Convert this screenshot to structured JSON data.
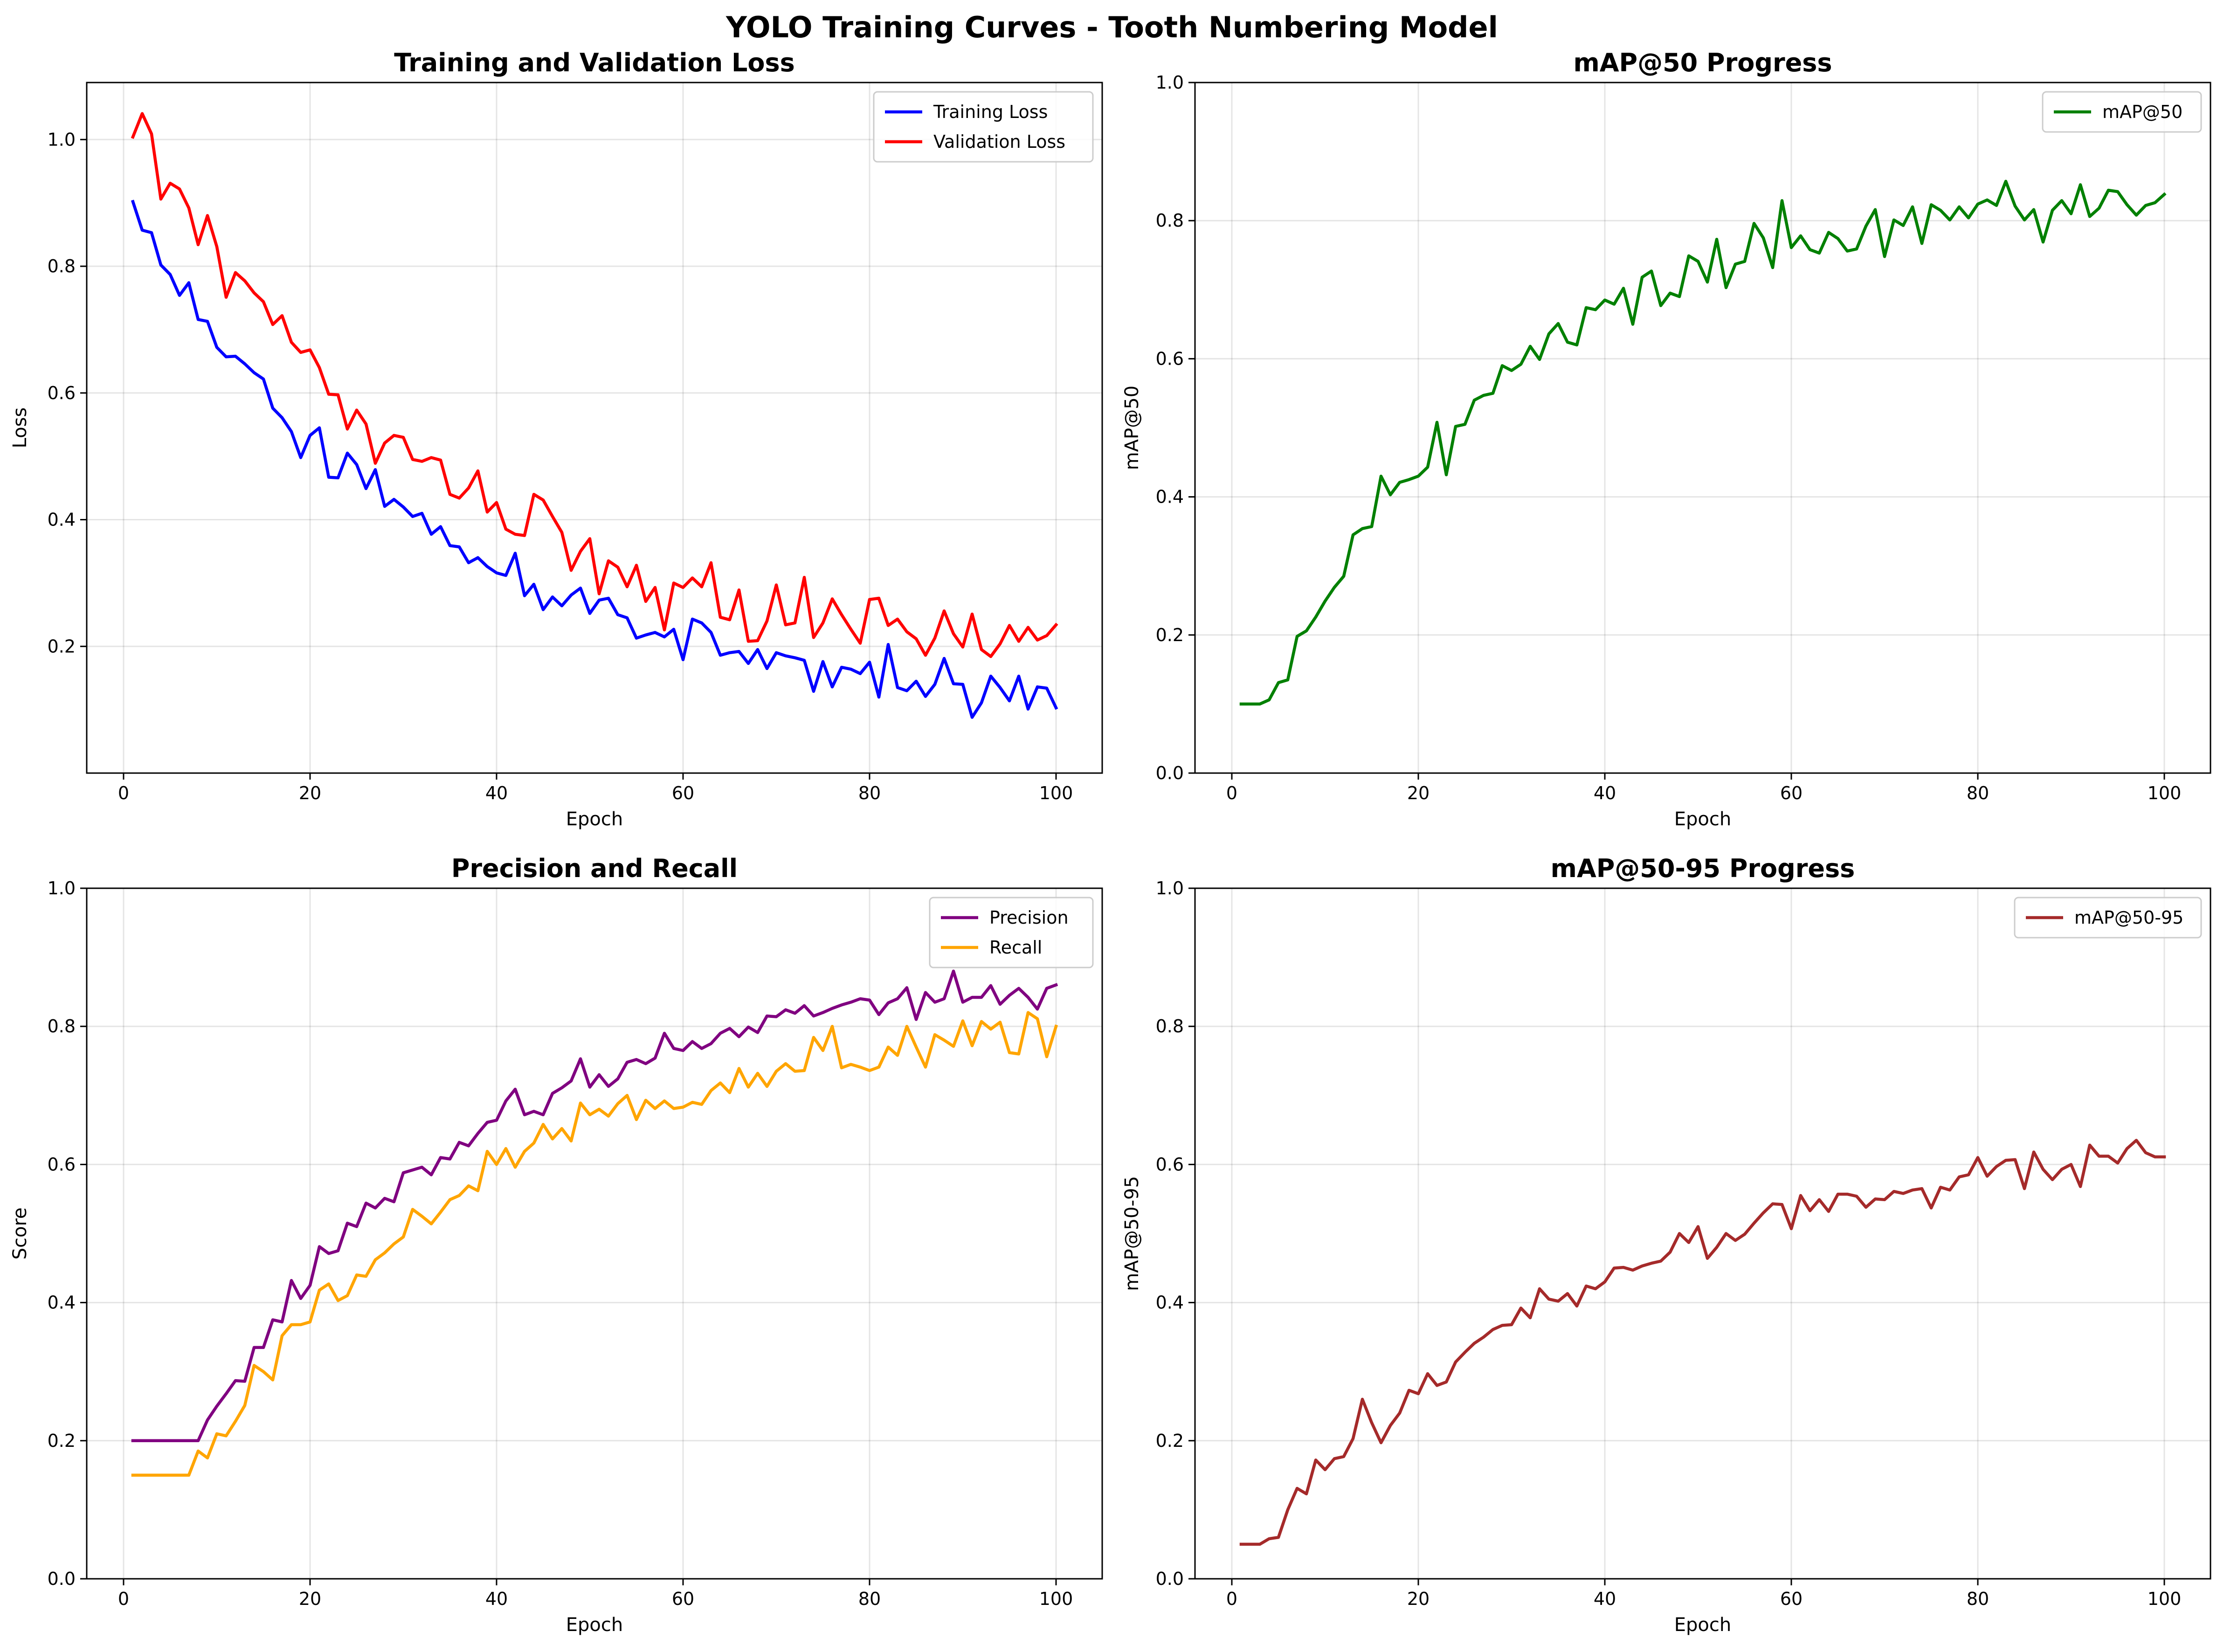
{
  "suptitle": "YOLO Training Curves - Tooth Numbering Model",
  "chart_data": [
    {
      "type": "line",
      "title": "Training and Validation Loss",
      "xlabel": "Epoch",
      "ylabel": "Loss",
      "xlim": [
        -3.95,
        104.95
      ],
      "ylim": [
        0.0,
        1.09
      ],
      "xticks": [
        0,
        20,
        40,
        60,
        80,
        100
      ],
      "yticks": [
        0.2,
        0.4,
        0.6,
        0.8,
        1.0
      ],
      "ytick_labels": [
        "0.2",
        "0.4",
        "0.6",
        "0.8",
        "1.0"
      ],
      "grid": true,
      "legend": "top-right",
      "x_start": 1,
      "series": [
        {
          "name": "Training Loss",
          "color": "#0000ff",
          "values": [
            0.902,
            0.857,
            0.853,
            0.802,
            0.787,
            0.754,
            0.774,
            0.716,
            0.713,
            0.672,
            0.657,
            0.658,
            0.646,
            0.632,
            0.622,
            0.576,
            0.561,
            0.539,
            0.498,
            0.533,
            0.545,
            0.467,
            0.466,
            0.505,
            0.487,
            0.449,
            0.479,
            0.421,
            0.432,
            0.42,
            0.405,
            0.41,
            0.377,
            0.389,
            0.359,
            0.357,
            0.332,
            0.34,
            0.326,
            0.316,
            0.312,
            0.347,
            0.28,
            0.298,
            0.258,
            0.278,
            0.264,
            0.281,
            0.292,
            0.252,
            0.273,
            0.276,
            0.25,
            0.245,
            0.213,
            0.218,
            0.222,
            0.215,
            0.227,
            0.179,
            0.243,
            0.237,
            0.222,
            0.186,
            0.19,
            0.192,
            0.173,
            0.195,
            0.165,
            0.19,
            0.185,
            0.182,
            0.178,
            0.129,
            0.176,
            0.136,
            0.167,
            0.164,
            0.157,
            0.175,
            0.12,
            0.203,
            0.135,
            0.13,
            0.145,
            0.121,
            0.14,
            0.181,
            0.141,
            0.14,
            0.088,
            0.111,
            0.153,
            0.135,
            0.114,
            0.153,
            0.101,
            0.136,
            0.134,
            0.103
          ]
        },
        {
          "name": "Validation Loss",
          "color": "#ff0000",
          "values": [
            1.004,
            1.041,
            1.009,
            0.906,
            0.931,
            0.922,
            0.892,
            0.834,
            0.88,
            0.831,
            0.751,
            0.79,
            0.777,
            0.758,
            0.744,
            0.708,
            0.722,
            0.68,
            0.664,
            0.668,
            0.64,
            0.598,
            0.597,
            0.543,
            0.573,
            0.551,
            0.489,
            0.521,
            0.533,
            0.53,
            0.495,
            0.492,
            0.498,
            0.494,
            0.44,
            0.434,
            0.45,
            0.477,
            0.412,
            0.427,
            0.385,
            0.377,
            0.375,
            0.44,
            0.431,
            0.405,
            0.38,
            0.32,
            0.35,
            0.37,
            0.283,
            0.335,
            0.325,
            0.294,
            0.328,
            0.271,
            0.293,
            0.226,
            0.3,
            0.293,
            0.308,
            0.294,
            0.332,
            0.246,
            0.242,
            0.289,
            0.208,
            0.209,
            0.24,
            0.297,
            0.234,
            0.237,
            0.309,
            0.214,
            0.237,
            0.275,
            0.25,
            0.227,
            0.205,
            0.274,
            0.276,
            0.233,
            0.243,
            0.223,
            0.212,
            0.186,
            0.213,
            0.256,
            0.22,
            0.199,
            0.251,
            0.195,
            0.184,
            0.204,
            0.233,
            0.208,
            0.23,
            0.21,
            0.217,
            0.234
          ]
        }
      ]
    },
    {
      "type": "line",
      "title": "mAP@50 Progress",
      "xlabel": "Epoch",
      "ylabel": "mAP@50",
      "xlim": [
        -3.95,
        104.95
      ],
      "ylim": [
        0.0,
        1.0
      ],
      "xticks": [
        0,
        20,
        40,
        60,
        80,
        100
      ],
      "yticks": [
        0.0,
        0.2,
        0.4,
        0.6,
        0.8,
        1.0
      ],
      "ytick_labels": [
        "0.0",
        "0.2",
        "0.4",
        "0.6",
        "0.8",
        "1.0"
      ],
      "grid": true,
      "legend": "top-right",
      "x_start": 1,
      "series": [
        {
          "name": "mAP@50",
          "color": "#008000",
          "values": [
            0.1,
            0.1,
            0.1,
            0.106,
            0.131,
            0.135,
            0.198,
            0.206,
            0.226,
            0.249,
            0.269,
            0.285,
            0.345,
            0.354,
            0.357,
            0.43,
            0.403,
            0.421,
            0.425,
            0.43,
            0.443,
            0.508,
            0.432,
            0.502,
            0.505,
            0.54,
            0.547,
            0.55,
            0.59,
            0.583,
            0.592,
            0.618,
            0.599,
            0.636,
            0.651,
            0.624,
            0.62,
            0.674,
            0.671,
            0.685,
            0.679,
            0.702,
            0.65,
            0.718,
            0.727,
            0.677,
            0.695,
            0.69,
            0.749,
            0.741,
            0.711,
            0.773,
            0.703,
            0.737,
            0.741,
            0.796,
            0.775,
            0.732,
            0.829,
            0.761,
            0.778,
            0.758,
            0.753,
            0.783,
            0.774,
            0.756,
            0.759,
            0.792,
            0.816,
            0.748,
            0.801,
            0.793,
            0.82,
            0.767,
            0.823,
            0.815,
            0.801,
            0.82,
            0.804,
            0.824,
            0.83,
            0.822,
            0.857,
            0.821,
            0.801,
            0.816,
            0.769,
            0.815,
            0.829,
            0.81,
            0.852,
            0.806,
            0.818,
            0.844,
            0.842,
            0.823,
            0.808,
            0.822,
            0.826,
            0.838
          ]
        }
      ]
    },
    {
      "type": "line",
      "title": "Precision and Recall",
      "xlabel": "Epoch",
      "ylabel": "Score",
      "xlim": [
        -3.95,
        104.95
      ],
      "ylim": [
        0.0,
        1.0
      ],
      "xticks": [
        0,
        20,
        40,
        60,
        80,
        100
      ],
      "yticks": [
        0.0,
        0.2,
        0.4,
        0.6,
        0.8,
        1.0
      ],
      "ytick_labels": [
        "0.0",
        "0.2",
        "0.4",
        "0.6",
        "0.8",
        "1.0"
      ],
      "grid": true,
      "legend": "top-right",
      "x_start": 1,
      "series": [
        {
          "name": "Precision",
          "color": "#800080",
          "values": [
            0.2,
            0.2,
            0.2,
            0.2,
            0.2,
            0.2,
            0.2,
            0.2,
            0.23,
            0.25,
            0.268,
            0.287,
            0.286,
            0.335,
            0.335,
            0.375,
            0.372,
            0.432,
            0.406,
            0.425,
            0.481,
            0.471,
            0.475,
            0.515,
            0.51,
            0.544,
            0.537,
            0.551,
            0.546,
            0.588,
            0.592,
            0.596,
            0.585,
            0.61,
            0.608,
            0.632,
            0.627,
            0.645,
            0.661,
            0.664,
            0.692,
            0.709,
            0.672,
            0.677,
            0.672,
            0.703,
            0.711,
            0.721,
            0.753,
            0.712,
            0.73,
            0.713,
            0.724,
            0.748,
            0.752,
            0.746,
            0.754,
            0.79,
            0.768,
            0.765,
            0.778,
            0.768,
            0.775,
            0.79,
            0.797,
            0.785,
            0.799,
            0.791,
            0.815,
            0.814,
            0.824,
            0.819,
            0.83,
            0.815,
            0.82,
            0.826,
            0.831,
            0.835,
            0.84,
            0.838,
            0.817,
            0.834,
            0.84,
            0.856,
            0.81,
            0.849,
            0.835,
            0.84,
            0.88,
            0.835,
            0.842,
            0.842,
            0.859,
            0.832,
            0.845,
            0.855,
            0.842,
            0.825,
            0.855,
            0.86
          ]
        },
        {
          "name": "Recall",
          "color": "#ffa500",
          "values": [
            0.15,
            0.15,
            0.15,
            0.15,
            0.15,
            0.15,
            0.15,
            0.185,
            0.175,
            0.21,
            0.207,
            0.228,
            0.251,
            0.309,
            0.3,
            0.288,
            0.352,
            0.368,
            0.368,
            0.372,
            0.418,
            0.427,
            0.403,
            0.41,
            0.44,
            0.438,
            0.462,
            0.472,
            0.485,
            0.495,
            0.535,
            0.525,
            0.514,
            0.531,
            0.549,
            0.555,
            0.569,
            0.562,
            0.619,
            0.6,
            0.623,
            0.596,
            0.619,
            0.631,
            0.658,
            0.637,
            0.652,
            0.634,
            0.689,
            0.672,
            0.68,
            0.67,
            0.688,
            0.7,
            0.665,
            0.693,
            0.681,
            0.692,
            0.681,
            0.683,
            0.69,
            0.687,
            0.707,
            0.718,
            0.704,
            0.739,
            0.712,
            0.732,
            0.713,
            0.735,
            0.746,
            0.735,
            0.736,
            0.784,
            0.765,
            0.8,
            0.74,
            0.745,
            0.741,
            0.736,
            0.741,
            0.77,
            0.758,
            0.8,
            0.77,
            0.741,
            0.788,
            0.78,
            0.771,
            0.808,
            0.772,
            0.807,
            0.796,
            0.806,
            0.762,
            0.76,
            0.82,
            0.811,
            0.756,
            0.8
          ]
        }
      ]
    },
    {
      "type": "line",
      "title": "mAP@50-95 Progress",
      "xlabel": "Epoch",
      "ylabel": "mAP@50-95",
      "xlim": [
        -3.95,
        104.95
      ],
      "ylim": [
        0.0,
        1.0
      ],
      "xticks": [
        0,
        20,
        40,
        60,
        80,
        100
      ],
      "yticks": [
        0.0,
        0.2,
        0.4,
        0.6,
        0.8,
        1.0
      ],
      "ytick_labels": [
        "0.0",
        "0.2",
        "0.4",
        "0.6",
        "0.8",
        "1.0"
      ],
      "grid": true,
      "legend": "top-right",
      "x_start": 1,
      "series": [
        {
          "name": "mAP@50-95",
          "color": "#a52a2a",
          "values": [
            0.05,
            0.05,
            0.05,
            0.058,
            0.06,
            0.1,
            0.131,
            0.123,
            0.172,
            0.158,
            0.174,
            0.177,
            0.203,
            0.26,
            0.226,
            0.197,
            0.222,
            0.24,
            0.273,
            0.268,
            0.297,
            0.28,
            0.285,
            0.314,
            0.328,
            0.341,
            0.35,
            0.361,
            0.367,
            0.368,
            0.392,
            0.378,
            0.42,
            0.405,
            0.402,
            0.413,
            0.395,
            0.424,
            0.42,
            0.43,
            0.45,
            0.451,
            0.447,
            0.453,
            0.457,
            0.46,
            0.473,
            0.5,
            0.487,
            0.51,
            0.464,
            0.48,
            0.5,
            0.49,
            0.499,
            0.515,
            0.53,
            0.543,
            0.542,
            0.507,
            0.555,
            0.533,
            0.549,
            0.532,
            0.557,
            0.557,
            0.554,
            0.538,
            0.55,
            0.549,
            0.561,
            0.558,
            0.563,
            0.565,
            0.537,
            0.567,
            0.563,
            0.582,
            0.585,
            0.61,
            0.583,
            0.597,
            0.606,
            0.607,
            0.565,
            0.618,
            0.593,
            0.578,
            0.593,
            0.6,
            0.568,
            0.628,
            0.612,
            0.612,
            0.602,
            0.623,
            0.635,
            0.617,
            0.611,
            0.611
          ]
        }
      ]
    }
  ]
}
